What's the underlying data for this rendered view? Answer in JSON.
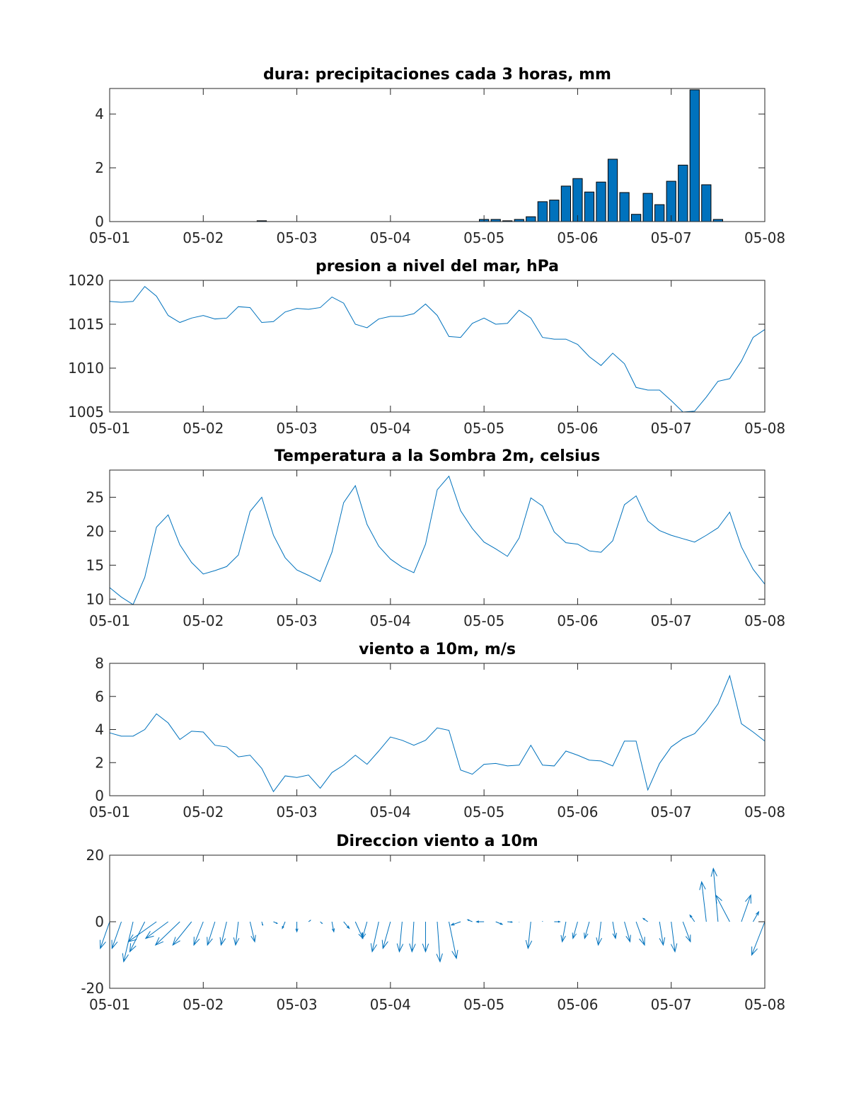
{
  "chart_data": [
    {
      "type": "bar",
      "title": "dura: precipitaciones cada 3 horas, mm",
      "xlabel": "",
      "ylabel": "",
      "x_tick_labels": [
        "05-01",
        "05-02",
        "05-03",
        "05-04",
        "05-05",
        "05-06",
        "05-07",
        "05-08"
      ],
      "y_ticks": [
        0,
        2,
        4
      ],
      "xlim": [
        0,
        7
      ],
      "ylim": [
        0,
        4.95
      ],
      "x": [
        1.625,
        4,
        4.125,
        4.25,
        4.375,
        4.5,
        4.625,
        4.75,
        4.875,
        5,
        5.125,
        5.25,
        5.375,
        5.5,
        5.625,
        5.75,
        5.875,
        6,
        6.125,
        6.25,
        6.375,
        6.5
      ],
      "values": [
        0.03,
        0.08,
        0.08,
        0.03,
        0.08,
        0.18,
        0.74,
        0.8,
        1.32,
        1.6,
        1.1,
        1.47,
        2.32,
        1.08,
        0.27,
        1.05,
        0.63,
        1.5,
        2.1,
        4.9,
        1.37,
        0.08
      ]
    },
    {
      "type": "line",
      "title": "presion a nivel del mar, hPa",
      "xlabel": "",
      "ylabel": "",
      "x_tick_labels": [
        "05-01",
        "05-02",
        "05-03",
        "05-04",
        "05-05",
        "05-06",
        "05-07",
        "05-08"
      ],
      "y_ticks": [
        1005,
        1010,
        1015,
        1020
      ],
      "xlim": [
        0,
        7
      ],
      "ylim": [
        1005,
        1020
      ],
      "x_step": 0.125,
      "values": [
        1017.6,
        1017.5,
        1017.6,
        1019.3,
        1018.2,
        1016.0,
        1015.2,
        1015.7,
        1016.0,
        1015.6,
        1015.7,
        1017.0,
        1016.9,
        1015.2,
        1015.3,
        1016.4,
        1016.8,
        1016.7,
        1016.9,
        1018.1,
        1017.4,
        1015.0,
        1014.6,
        1015.6,
        1015.9,
        1015.9,
        1016.2,
        1017.3,
        1016.0,
        1013.6,
        1013.5,
        1015.1,
        1015.7,
        1015.0,
        1015.1,
        1016.6,
        1015.7,
        1013.5,
        1013.3,
        1013.3,
        1012.7,
        1011.3,
        1010.3,
        1011.7,
        1010.5,
        1007.8,
        1007.5,
        1007.5,
        1006.3,
        1005.0,
        1005.1,
        1006.7,
        1008.5,
        1008.8,
        1010.8,
        1013.5,
        1014.4
      ]
    },
    {
      "type": "line",
      "title": "Temperatura a la Sombra 2m, celsius",
      "xlabel": "",
      "ylabel": "",
      "x_tick_labels": [
        "05-01",
        "05-02",
        "05-03",
        "05-04",
        "05-05",
        "05-06",
        "05-07",
        "05-08"
      ],
      "y_ticks": [
        10,
        15,
        20,
        25
      ],
      "xlim": [
        0,
        7
      ],
      "ylim": [
        9.2,
        29
      ],
      "x_step": 0.125,
      "values": [
        11.7,
        10.3,
        9.2,
        13.2,
        20.6,
        22.4,
        18.0,
        15.4,
        13.7,
        14.2,
        14.8,
        16.5,
        22.9,
        25.0,
        19.4,
        16.1,
        14.3,
        13.5,
        12.6,
        16.9,
        24.2,
        26.7,
        21.0,
        17.8,
        15.9,
        14.7,
        13.9,
        18.1,
        26.1,
        28.1,
        23.0,
        20.4,
        18.4,
        17.4,
        16.3,
        19.0,
        24.9,
        23.7,
        19.9,
        18.3,
        18.1,
        17.1,
        16.9,
        18.6,
        23.9,
        25.2,
        21.5,
        20.1,
        19.4,
        18.9,
        18.4,
        19.4,
        20.5,
        22.8,
        17.7,
        14.4,
        12.2
      ]
    },
    {
      "type": "line",
      "title": "viento a 10m, m/s",
      "xlabel": "",
      "ylabel": "",
      "x_tick_labels": [
        "05-01",
        "05-02",
        "05-03",
        "05-04",
        "05-05",
        "05-06",
        "05-07",
        "05-08"
      ],
      "y_ticks": [
        0,
        2,
        4,
        6,
        8
      ],
      "xlim": [
        0,
        7
      ],
      "ylim": [
        0,
        8
      ],
      "x_step": 0.125,
      "values": [
        3.8,
        3.6,
        3.6,
        4.0,
        4.95,
        4.4,
        3.4,
        3.9,
        3.85,
        3.05,
        2.95,
        2.35,
        2.45,
        1.65,
        0.25,
        1.2,
        1.1,
        1.25,
        0.45,
        1.4,
        1.85,
        2.45,
        1.9,
        2.7,
        3.55,
        3.35,
        3.05,
        3.35,
        4.1,
        3.95,
        1.55,
        1.3,
        1.9,
        1.95,
        1.8,
        1.85,
        3.05,
        1.85,
        1.8,
        2.7,
        2.45,
        2.15,
        2.1,
        1.8,
        3.3,
        3.3,
        0.35,
        1.95,
        2.95,
        3.45,
        3.75,
        4.55,
        5.55,
        7.25,
        4.35,
        3.85,
        3.3
      ]
    },
    {
      "type": "quiver",
      "title": "Direccion viento a 10m",
      "xlabel": "",
      "ylabel": "",
      "x_tick_labels": [
        "05-01",
        "05-02",
        "05-03",
        "05-04",
        "05-05",
        "05-06",
        "05-07",
        "05-08"
      ],
      "y_ticks": [
        -20,
        0,
        20
      ],
      "xlim": [
        0,
        7
      ],
      "ylim": [
        -20,
        20
      ],
      "x_step": 0.125,
      "vectors": [
        [
          -0.1,
          -8
        ],
        [
          -0.1,
          -8
        ],
        [
          -0.1,
          -12
        ],
        [
          -0.16,
          -9
        ],
        [
          -0.3,
          -6
        ],
        [
          -0.24,
          -5
        ],
        [
          -0.26,
          -7
        ],
        [
          -0.2,
          -7
        ],
        [
          -0.1,
          -7
        ],
        [
          -0.08,
          -7
        ],
        [
          -0.06,
          -7
        ],
        [
          -0.03,
          -7
        ],
        [
          0.05,
          -6
        ],
        [
          0.01,
          -1
        ],
        [
          0.04,
          -0.5
        ],
        [
          -0.03,
          -2
        ],
        [
          0.0,
          -3
        ],
        [
          0.02,
          0.4
        ],
        [
          0.02,
          -0.5
        ],
        [
          0.02,
          -3
        ],
        [
          0.06,
          -2
        ],
        [
          0.08,
          -5
        ],
        [
          -0.05,
          -5
        ],
        [
          -0.07,
          -9
        ],
        [
          -0.08,
          -8
        ],
        [
          -0.03,
          -9
        ],
        [
          -0.02,
          -9
        ],
        [
          0.0,
          -9
        ],
        [
          0.03,
          -12
        ],
        [
          0.08,
          -11
        ],
        [
          -0.1,
          -1
        ],
        [
          -0.05,
          0.6
        ],
        [
          -0.08,
          0
        ],
        [
          0.07,
          -0.8
        ],
        [
          0.05,
          -0.1
        ],
        [
          0.0,
          -0.1
        ],
        [
          -0.03,
          -8
        ],
        [
          0.0,
          0.2
        ],
        [
          0.06,
          0
        ],
        [
          -0.04,
          -6
        ],
        [
          -0.05,
          -5
        ],
        [
          -0.05,
          -5
        ],
        [
          -0.03,
          -7
        ],
        [
          0.03,
          -5
        ],
        [
          0.06,
          -6
        ],
        [
          0.09,
          -7
        ],
        [
          -0.05,
          1
        ],
        [
          0.04,
          -7
        ],
        [
          0.04,
          -9
        ],
        [
          0.08,
          -6
        ],
        [
          -0.05,
          2
        ],
        [
          -0.05,
          12
        ],
        [
          -0.05,
          16
        ],
        [
          -0.15,
          8
        ],
        [
          0.1,
          8
        ],
        [
          0.06,
          3
        ],
        [
          -0.14,
          -10
        ]
      ]
    }
  ]
}
